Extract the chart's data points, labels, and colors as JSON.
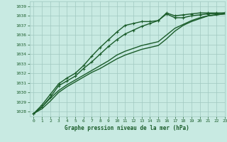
{
  "title": "Graphe pression niveau de la mer (hPa)",
  "bg_color": "#c8eae2",
  "grid_color": "#a0c8c0",
  "line_color": "#1a5c2a",
  "xlim": [
    -0.5,
    23
  ],
  "ylim": [
    1027.5,
    1039.5
  ],
  "yticks": [
    1028,
    1029,
    1030,
    1031,
    1032,
    1033,
    1034,
    1035,
    1036,
    1037,
    1038,
    1039
  ],
  "xticks": [
    0,
    1,
    2,
    3,
    4,
    5,
    6,
    7,
    8,
    9,
    10,
    11,
    12,
    13,
    14,
    15,
    16,
    17,
    18,
    19,
    20,
    21,
    22,
    23
  ],
  "series": [
    {
      "x": [
        0,
        1,
        2,
        3,
        4,
        5,
        6,
        7,
        8,
        9,
        10,
        11,
        12,
        13,
        14,
        15,
        16,
        17,
        18,
        19,
        20,
        21,
        22,
        23
      ],
      "y": [
        1027.8,
        1028.7,
        1029.8,
        1030.9,
        1031.5,
        1032.0,
        1032.8,
        1033.8,
        1034.7,
        1035.5,
        1036.3,
        1037.0,
        1037.2,
        1037.4,
        1037.4,
        1037.5,
        1038.2,
        1037.8,
        1037.8,
        1038.0,
        1038.1,
        1038.2,
        1038.2,
        1038.3
      ],
      "marker": "+",
      "lw": 1.0,
      "ms": 3.5
    },
    {
      "x": [
        0,
        1,
        2,
        3,
        4,
        5,
        6,
        7,
        8,
        9,
        10,
        11,
        12,
        13,
        14,
        15,
        16,
        17,
        18,
        19,
        20,
        21,
        22,
        23
      ],
      "y": [
        1027.8,
        1028.3,
        1029.1,
        1030.0,
        1030.6,
        1031.1,
        1031.6,
        1032.1,
        1032.5,
        1033.0,
        1033.5,
        1033.9,
        1034.2,
        1034.5,
        1034.7,
        1034.9,
        1035.6,
        1036.4,
        1037.0,
        1037.4,
        1037.7,
        1038.0,
        1038.1,
        1038.2
      ],
      "marker": null,
      "lw": 1.0,
      "ms": 0
    },
    {
      "x": [
        0,
        1,
        2,
        3,
        4,
        5,
        6,
        7,
        8,
        9,
        10,
        11,
        12,
        13,
        14,
        15,
        16,
        17,
        18,
        19,
        20,
        21,
        22,
        23
      ],
      "y": [
        1027.8,
        1028.5,
        1029.4,
        1030.2,
        1030.8,
        1031.3,
        1031.8,
        1032.3,
        1032.8,
        1033.3,
        1033.9,
        1034.3,
        1034.6,
        1034.9,
        1035.1,
        1035.3,
        1036.0,
        1036.7,
        1037.1,
        1037.5,
        1037.8,
        1038.0,
        1038.1,
        1038.2
      ],
      "marker": null,
      "lw": 1.0,
      "ms": 0
    },
    {
      "x": [
        0,
        1,
        2,
        3,
        4,
        5,
        6,
        7,
        8,
        9,
        10,
        11,
        12,
        13,
        14,
        15,
        16,
        17,
        18,
        19,
        20,
        21,
        22,
        23
      ],
      "y": [
        1027.8,
        1028.5,
        1029.5,
        1030.7,
        1031.2,
        1031.7,
        1032.5,
        1033.2,
        1034.0,
        1034.8,
        1035.5,
        1036.1,
        1036.5,
        1036.9,
        1037.2,
        1037.5,
        1038.3,
        1038.0,
        1038.1,
        1038.2,
        1038.3,
        1038.3,
        1038.3,
        1038.3
      ],
      "marker": "+",
      "lw": 1.0,
      "ms": 3.5
    }
  ],
  "figsize": [
    3.2,
    2.0
  ],
  "dpi": 100
}
